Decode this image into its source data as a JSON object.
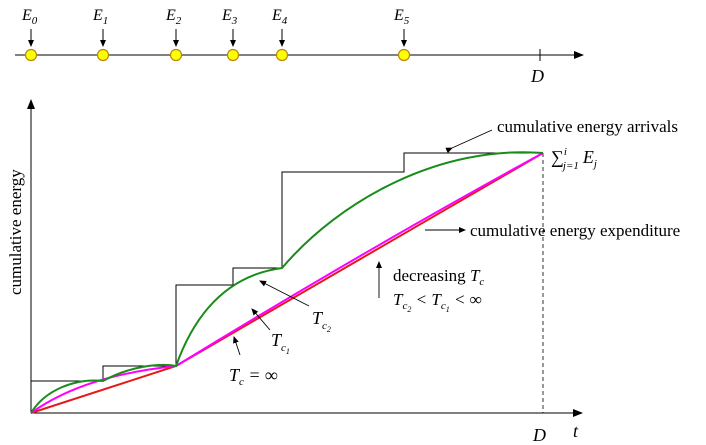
{
  "timeline": {
    "events": [
      {
        "base": "E",
        "sub": "0"
      },
      {
        "base": "E",
        "sub": "1"
      },
      {
        "base": "E",
        "sub": "2"
      },
      {
        "base": "E",
        "sub": "3"
      },
      {
        "base": "E",
        "sub": "4"
      },
      {
        "base": "E",
        "sub": "5"
      }
    ],
    "deadline_label": "D"
  },
  "plot": {
    "ylabel": "cumulative energy",
    "xlabel": "t",
    "x_deadline_label": "D",
    "arrivals_label": "cumulative energy arrivals",
    "arrivals_formula": {
      "sum": "∑",
      "sup": "i",
      "sub": "j=1",
      "term": "E",
      "term_sub": "j"
    },
    "expenditure_label": "cumulative energy expenditure",
    "decreasing_label": {
      "text": "decreasing ",
      "var": "T",
      "sub": "c"
    },
    "inequality": {
      "lhs": "T",
      "lhs_sub": "c",
      "lhs_subsub": "2",
      "op1": " < ",
      "mid": "T",
      "mid_sub": "c",
      "mid_subsub": "1",
      "op2": " < ∞"
    },
    "curve_labels": {
      "tc2": {
        "var": "T",
        "sub": "c",
        "subsub": "2"
      },
      "tc1": {
        "var": "T",
        "sub": "c",
        "subsub": "1"
      },
      "tcinf": {
        "var": "T",
        "sub": "c",
        "rest": " = ∞"
      }
    }
  },
  "colors": {
    "arrivals": "#000000",
    "tc_inf": "#e41a1a",
    "tc1": "#ff00ff",
    "tc2": "#1a8c1a",
    "marker_fill": "#ffff00",
    "marker_stroke": "#b8860b"
  }
}
